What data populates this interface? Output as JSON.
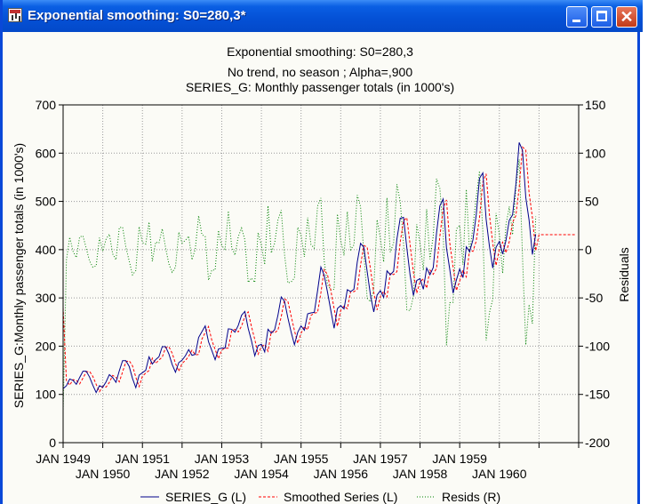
{
  "window": {
    "title": "Exponential smoothing:  S0=280,3*"
  },
  "chart_data": {
    "type": "line",
    "title": "Exponential smoothing:  S0=280,3",
    "subtitle1": "No trend, no season   ; Alpha=,900",
    "subtitle2": "SERIES_G: Monthly passenger totals (in 1000's)",
    "ylabel": "SERIES_G:Monthly passenger totals (in 1000's)",
    "y2label": "Residuals",
    "ylim": [
      0,
      700
    ],
    "y2lim": [
      -200,
      150
    ],
    "yticks": [
      "0",
      "100",
      "200",
      "300",
      "400",
      "500",
      "600",
      "700"
    ],
    "y2ticks": [
      "-200",
      "-150",
      "-100",
      "-50",
      "0",
      "50",
      "100",
      "150"
    ],
    "xticks_top": [
      "JAN 1949",
      "JAN 1951",
      "JAN 1953",
      "JAN 1955",
      "JAN 1957",
      "JAN 1959"
    ],
    "xticks_bottom": [
      "JAN 1950",
      "JAN 1952",
      "JAN 1954",
      "JAN 1956",
      "JAN 1958",
      "JAN 1960"
    ],
    "grid": true,
    "x_start": "JAN 1949",
    "x_end": "JAN 1962",
    "legend_position": "bottom",
    "alpha": 0.9,
    "s0": 280.3,
    "forecast": {
      "periods": 12,
      "value": 431
    },
    "series": [
      {
        "name": "SERIES_G (L)",
        "axis": "left",
        "color": "#00008b",
        "style": "solid",
        "values": [
          112,
          118,
          132,
          129,
          121,
          135,
          148,
          148,
          136,
          119,
          104,
          118,
          115,
          126,
          141,
          135,
          125,
          149,
          170,
          170,
          158,
          133,
          114,
          140,
          145,
          150,
          178,
          163,
          172,
          178,
          199,
          199,
          184,
          162,
          146,
          166,
          171,
          180,
          193,
          181,
          183,
          218,
          230,
          242,
          209,
          191,
          172,
          194,
          196,
          196,
          236,
          235,
          229,
          243,
          264,
          272,
          237,
          211,
          180,
          201,
          204,
          188,
          235,
          227,
          234,
          264,
          302,
          293,
          259,
          229,
          203,
          229,
          242,
          233,
          267,
          269,
          270,
          315,
          364,
          347,
          312,
          274,
          237,
          278,
          284,
          277,
          317,
          313,
          318,
          374,
          413,
          405,
          355,
          306,
          271,
          306,
          315,
          301,
          356,
          348,
          355,
          422,
          465,
          467,
          404,
          347,
          305,
          336,
          340,
          318,
          362,
          348,
          363,
          435,
          491,
          505,
          404,
          359,
          310,
          337,
          360,
          342,
          406,
          396,
          420,
          472,
          548,
          559,
          463,
          407,
          362,
          405,
          417,
          391,
          419,
          461,
          472,
          535,
          622,
          606,
          508,
          461,
          390,
          432
        ]
      },
      {
        "name": "Smoothed Series (L)",
        "axis": "left",
        "color": "#ff0000",
        "style": "dashed"
      },
      {
        "name": "Resids (R)",
        "axis": "right",
        "color": "#008000",
        "style": "dotted"
      }
    ]
  }
}
